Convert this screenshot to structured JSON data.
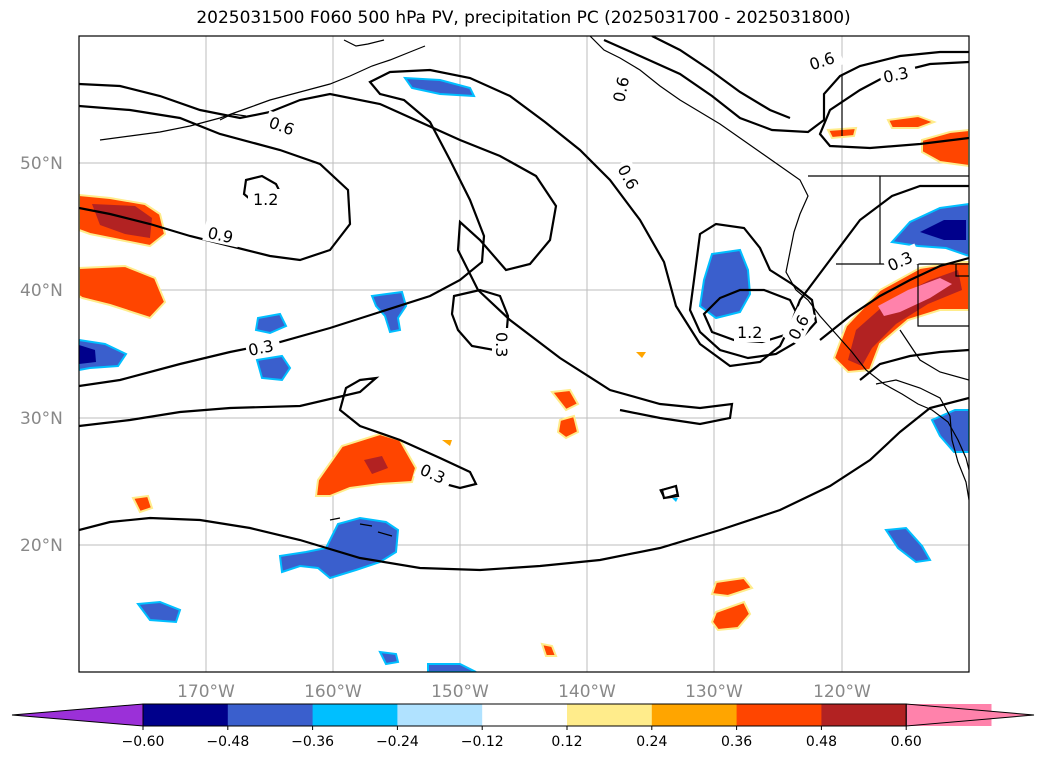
{
  "title": "2025031500 F060 500 hPa PV, precipitation PC (2025031700 - 2025031800)",
  "map": {
    "latitude_labels": [
      "50°N",
      "40°N",
      "30°N",
      "20°N"
    ],
    "longitude_labels": [
      "170°W",
      "160°W",
      "150°W",
      "140°W",
      "130°W",
      "120°W"
    ],
    "contour_labels": [
      "1.2",
      "0.9",
      "0.6",
      "0.3",
      "0.6",
      "0.3",
      "0.6",
      "0.3",
      "0.6",
      "0.3",
      "1.2",
      "0.6",
      "0.3",
      "0.3"
    ],
    "contour_color": "#000000",
    "gridline_color": "#bdbdbd"
  },
  "colorbar": {
    "ticks": [
      "−0.60",
      "−0.48",
      "−0.36",
      "−0.24",
      "−0.12",
      "0.12",
      "0.24",
      "0.36",
      "0.48",
      "0.60"
    ],
    "colors": [
      "#9b30d8",
      "#00008b",
      "#3a5fcd",
      "#00bfff",
      "#b0e2ff",
      "#ffffff",
      "#ffec8b",
      "#ffa500",
      "#ff4500",
      "#b22222",
      "#ff82ab",
      "#ff82ab"
    ]
  }
}
